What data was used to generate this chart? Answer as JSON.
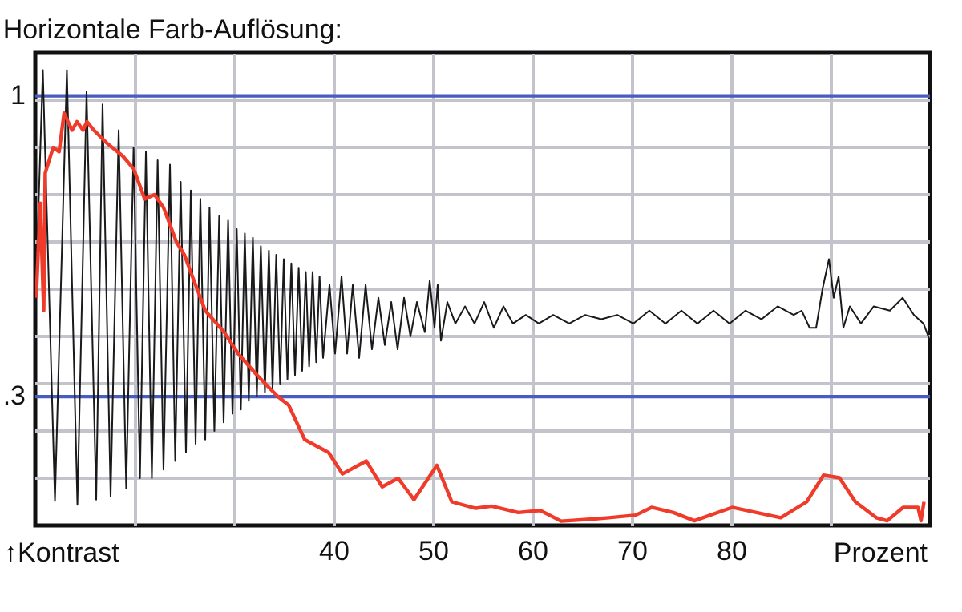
{
  "chart_data": {
    "type": "line",
    "title": "Horizontale Farb-Auflösung:",
    "xlabel": "Prozent",
    "ylabel": "↑Kontrast",
    "xlim": [
      10,
      100
    ],
    "xticks": [
      {
        "value": 20,
        "label": null
      },
      {
        "value": 30,
        "label": null
      },
      40,
      50,
      60,
      70,
      80,
      {
        "value": 90,
        "label": null
      }
    ],
    "ylim": [
      0,
      1.1
    ],
    "yticks": [
      {
        "value": 0.11,
        "label": null
      },
      {
        "value": 0.22,
        "label": null
      },
      {
        "value": 0.33,
        "label": null
      },
      {
        "value": 0.44,
        "label": null
      },
      {
        "value": 0.55,
        "label": null
      },
      {
        "value": 0.66,
        "label": null
      },
      {
        "value": 0.77,
        "label": null
      },
      {
        "value": 0.88,
        "label": null
      },
      {
        "value": 0.99,
        "label": null
      }
    ],
    "grid": true,
    "marker": "none",
    "line_style": "solid",
    "ref_lines": [
      {
        "axis": "y",
        "value": 1,
        "label": "1",
        "color": "#4a5cc0"
      },
      {
        "axis": "y",
        "value": 0.3,
        "label": ".3",
        "color": "#4a5cc0"
      }
    ],
    "series": [
      {
        "color": "#1a1a1a",
        "x": [
          10.0,
          10.76,
          11.98,
          13.18,
          14.24,
          15.16,
          16.13,
          16.77,
          17.58,
          18.39,
          19.15,
          19.89,
          20.53,
          21.13,
          21.73,
          22.31,
          22.9,
          23.55,
          24.08,
          24.63,
          25.16,
          25.65,
          26.13,
          26.61,
          27.1,
          27.53,
          28.02,
          28.5,
          28.95,
          29.4,
          29.84,
          30.27,
          30.68,
          31.08,
          31.48,
          31.89,
          32.29,
          32.69,
          33.1,
          33.5,
          33.87,
          34.24,
          34.63,
          35.0,
          35.37,
          35.76,
          36.13,
          36.5,
          36.85,
          37.21,
          37.55,
          37.9,
          38.26,
          38.6,
          38.95,
          39.6,
          40.16,
          40.81,
          41.37,
          41.94,
          42.58,
          43.23,
          43.87,
          44.52,
          45.16,
          45.81,
          46.45,
          47.1,
          47.74,
          48.39,
          49.19,
          49.68,
          50.16,
          50.48,
          50.81,
          51.45,
          52.26,
          53.23,
          54.19,
          55.16,
          56.13,
          57.1,
          58.06,
          59.35,
          60.65,
          62.1,
          63.71,
          65.32,
          66.94,
          68.55,
          70.16,
          71.77,
          73.39,
          75.0,
          76.61,
          78.23,
          79.84,
          81.45,
          83.06,
          84.68,
          86.29,
          87.1,
          87.9,
          88.55,
          89.19,
          89.84,
          90.32,
          90.81,
          91.29,
          91.94,
          93.06,
          94.35,
          95.97,
          97.26,
          98.39,
          99.35,
          100.0
        ],
        "values": [
          0.5,
          1.06,
          0.057,
          1.06,
          0.048,
          1.01,
          0.06,
          0.98,
          0.067,
          0.92,
          0.086,
          0.88,
          0.11,
          0.87,
          0.11,
          0.85,
          0.13,
          0.84,
          0.15,
          0.8,
          0.17,
          0.78,
          0.19,
          0.76,
          0.2,
          0.74,
          0.22,
          0.72,
          0.24,
          0.71,
          0.26,
          0.69,
          0.27,
          0.68,
          0.29,
          0.67,
          0.3,
          0.65,
          0.31,
          0.64,
          0.32,
          0.63,
          0.33,
          0.62,
          0.34,
          0.61,
          0.35,
          0.6,
          0.36,
          0.59,
          0.37,
          0.59,
          0.38,
          0.58,
          0.39,
          0.56,
          0.4,
          0.58,
          0.4,
          0.56,
          0.39,
          0.56,
          0.41,
          0.53,
          0.42,
          0.52,
          0.41,
          0.53,
          0.44,
          0.52,
          0.45,
          0.57,
          0.46,
          0.56,
          0.43,
          0.52,
          0.47,
          0.51,
          0.47,
          0.52,
          0.46,
          0.51,
          0.47,
          0.49,
          0.47,
          0.49,
          0.47,
          0.49,
          0.48,
          0.49,
          0.47,
          0.5,
          0.47,
          0.5,
          0.47,
          0.5,
          0.47,
          0.5,
          0.48,
          0.51,
          0.49,
          0.5,
          0.46,
          0.46,
          0.55,
          0.62,
          0.53,
          0.58,
          0.46,
          0.51,
          0.47,
          0.51,
          0.5,
          0.53,
          0.49,
          0.47,
          0.43
        ]
      },
      {
        "color": "#f03a2a",
        "x": [
          10.1,
          10.5,
          10.85,
          11.0,
          11.8,
          12.4,
          12.9,
          13.3,
          13.7,
          14.2,
          14.8,
          15.2,
          15.9,
          17.2,
          18.8,
          19.9,
          21.0,
          22.0,
          22.9,
          24.2,
          25.0,
          25.8,
          27.1,
          29.0,
          30.4,
          32.3,
          34.4,
          35.5,
          37.1,
          38.7,
          39.5,
          40.9,
          43.3,
          44.9,
          46.5,
          48.1,
          50.4,
          51.9,
          54.3,
          55.9,
          58.6,
          60.8,
          62.9,
          66.1,
          67.7,
          70.4,
          72.0,
          74.2,
          76.3,
          80.1,
          85.0,
          87.6,
          89.3,
          90.9,
          92.5,
          94.6,
          95.7,
          97.3,
          98.8,
          99.1,
          99.4
        ],
        "values": [
          0.53,
          0.75,
          0.5,
          0.82,
          0.88,
          0.87,
          0.96,
          0.94,
          0.92,
          0.94,
          0.92,
          0.94,
          0.92,
          0.89,
          0.86,
          0.83,
          0.76,
          0.77,
          0.74,
          0.66,
          0.63,
          0.58,
          0.5,
          0.45,
          0.4,
          0.35,
          0.3,
          0.28,
          0.2,
          0.18,
          0.17,
          0.12,
          0.15,
          0.09,
          0.11,
          0.06,
          0.14,
          0.055,
          0.04,
          0.045,
          0.03,
          0.035,
          0.01,
          0.015,
          0.018,
          0.024,
          0.042,
          0.03,
          0.011,
          0.042,
          0.018,
          0.055,
          0.117,
          0.111,
          0.055,
          0.018,
          0.011,
          0.042,
          0.042,
          0.011,
          0.055
        ]
      }
    ]
  }
}
